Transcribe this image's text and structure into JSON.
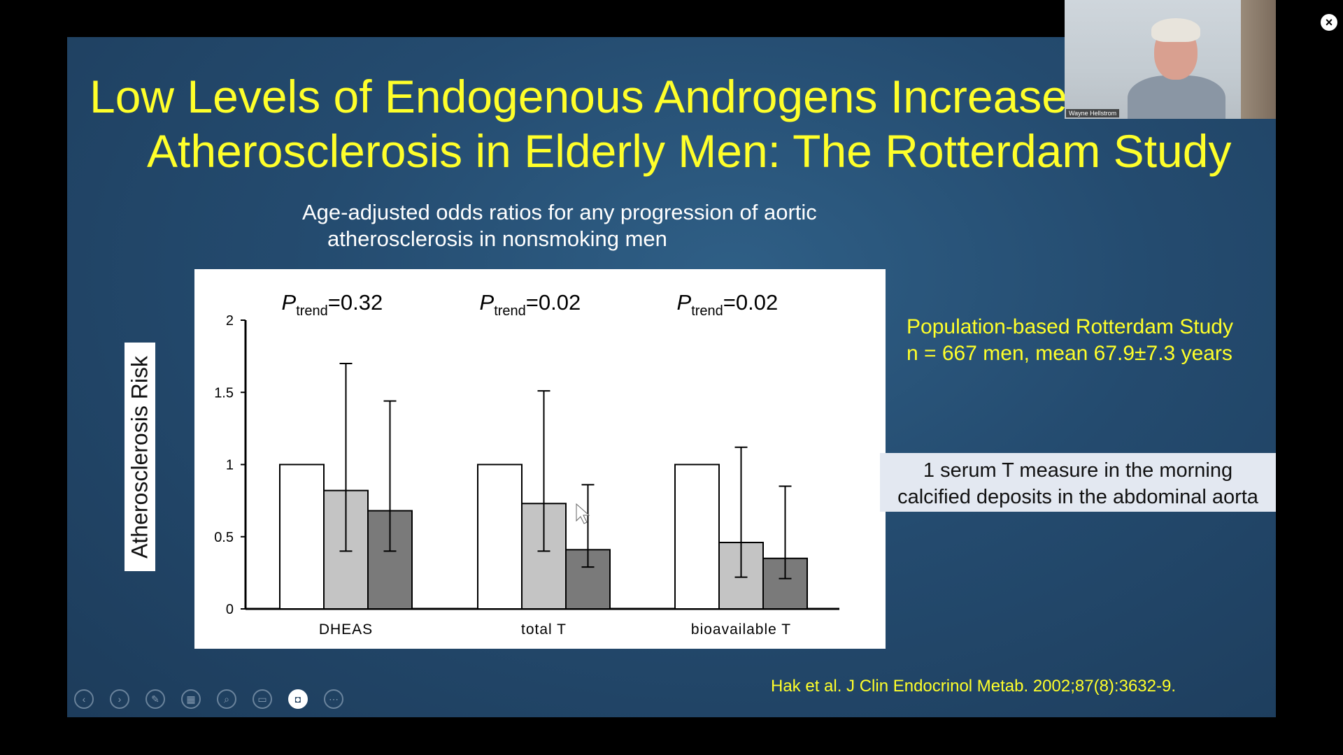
{
  "slide": {
    "title_line1": "Low Levels of Endogenous Androgens Increase t",
    "title_line2": "Atherosclerosis in Elderly Men: The Rotterdam Study",
    "subtitle_line1": "Age-adjusted odds ratios for any progression of aortic",
    "subtitle_line2": "atherosclerosis in nonsmoking men",
    "y_axis_box_label": "Atherosclerosis Risk",
    "population_line1": "Population-based Rotterdam Study",
    "population_line2": "n = 667 men, mean 67.9±7.3 years",
    "measure_line1": "1 serum T measure in the morning",
    "measure_line2": "calcified deposits in the abdominal aorta",
    "citation": "Hak et al. J Clin Endocrinol Metab. 2002;87(8):3632-9."
  },
  "colors": {
    "title": "#ffff2a",
    "slide_bg": "#244b6f",
    "bar_fills": [
      "#ffffff",
      "#c4c4c4",
      "#7a7a7a"
    ]
  },
  "webcam": {
    "name": "Wayne Hellstrom"
  },
  "toolbar": {
    "buttons": [
      {
        "name": "previous-slide-button",
        "icon": "‹"
      },
      {
        "name": "next-slide-button",
        "icon": "›"
      },
      {
        "name": "pen-tool-button",
        "icon": "✎"
      },
      {
        "name": "see-all-slides-button",
        "icon": "▦"
      },
      {
        "name": "zoom-button",
        "icon": "⌕"
      },
      {
        "name": "subtitles-button",
        "icon": "▭"
      },
      {
        "name": "camera-toggle-button",
        "icon": "◘"
      },
      {
        "name": "more-options-button",
        "icon": "⋯"
      }
    ]
  },
  "close_icon": "×",
  "chart_data": {
    "type": "bar",
    "categories": [
      "DHEAS",
      "total T",
      "bioavailable T"
    ],
    "p_trend_values": [
      "=0.32",
      "=0.02",
      "=0.02"
    ],
    "p_label": "P",
    "p_subscript": "trend",
    "series": [
      {
        "values": [
          1.0,
          1.0,
          1.0
        ]
      },
      {
        "values": [
          0.82,
          0.73,
          0.46
        ],
        "err_low": [
          0.4,
          0.4,
          0.22
        ],
        "err_high": [
          1.7,
          1.51,
          1.12
        ]
      },
      {
        "values": [
          0.68,
          0.41,
          0.35
        ],
        "err_low": [
          0.4,
          0.29,
          0.21
        ],
        "err_high": [
          1.44,
          0.86,
          0.85
        ]
      }
    ],
    "yticks": [
      "0",
      "0.5",
      "1",
      "1.5",
      "2"
    ],
    "ylim": [
      0,
      2
    ],
    "xlabel": "",
    "ylabel": "",
    "grid": false
  }
}
